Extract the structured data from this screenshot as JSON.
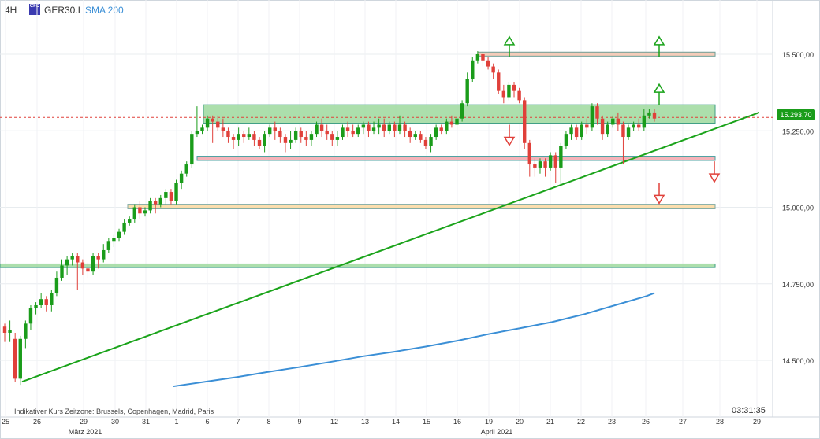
{
  "header": {
    "timeframe": "4H",
    "symbol": "GER30.I",
    "indicator": "SMA 200",
    "icon_label": "CFD"
  },
  "footer": {
    "note": "Indikativer Kurs    Zeitzone: Brussels, Copenhagen, Madrid, Paris",
    "clock": "03:31:35"
  },
  "current_price_label": "15.293,70",
  "colors": {
    "up": "#1a9c1a",
    "down": "#e0403a",
    "sma": "#3b8fd6",
    "trendline": "#1aa31a",
    "zone_green": "#9ed99e",
    "zone_red": "#f3a6ad",
    "zone_orange": "#fbd9a0",
    "zone_salmon": "#f4c4ae"
  },
  "chart_data": {
    "type": "candlestick",
    "y_tick_labels": [
      "15.500,00",
      "15.250,00",
      "15.000,00",
      "14.750,00",
      "14.500,00"
    ],
    "y_ticks": [
      15500,
      15250,
      15000,
      14750,
      14500
    ],
    "x_tick_labels": [
      "25",
      "26",
      "29",
      "30",
      "31",
      "1",
      "6",
      "7",
      "8",
      "9",
      "12",
      "13",
      "14",
      "15",
      "16",
      "19",
      "20",
      "21",
      "22",
      "23",
      "26",
      "27",
      "28",
      "29"
    ],
    "month_labels": [
      "März 2021",
      "April 2021"
    ],
    "current_price": 15293.7,
    "candles": [
      [
        14610,
        14590,
        14560,
        14620
      ],
      [
        14590,
        14600,
        14560,
        14630
      ],
      [
        14570,
        14440,
        14430,
        14590
      ],
      [
        14440,
        14570,
        14420,
        14580
      ],
      [
        14570,
        14620,
        14540,
        14630
      ],
      [
        14620,
        14670,
        14600,
        14680
      ],
      [
        14670,
        14680,
        14650,
        14690
      ],
      [
        14680,
        14700,
        14670,
        14720
      ],
      [
        14700,
        14680,
        14660,
        14710
      ],
      [
        14680,
        14720,
        14660,
        14730
      ],
      [
        14720,
        14770,
        14710,
        14790
      ],
      [
        14770,
        14810,
        14760,
        14830
      ],
      [
        14810,
        14830,
        14780,
        14840
      ],
      [
        14830,
        14840,
        14810,
        14850
      ],
      [
        14840,
        14820,
        14730,
        14850
      ],
      [
        14820,
        14800,
        14780,
        14830
      ],
      [
        14800,
        14790,
        14770,
        14820
      ],
      [
        14790,
        14840,
        14780,
        14850
      ],
      [
        14840,
        14830,
        14800,
        14850
      ],
      [
        14830,
        14860,
        14820,
        14880
      ],
      [
        14860,
        14890,
        14850,
        14900
      ],
      [
        14890,
        14900,
        14870,
        14910
      ],
      [
        14900,
        14920,
        14890,
        14930
      ],
      [
        14920,
        14950,
        14910,
        14960
      ],
      [
        14950,
        14960,
        14940,
        14970
      ],
      [
        14960,
        15000,
        14950,
        15010
      ],
      [
        15000,
        14980,
        14960,
        15020
      ],
      [
        14980,
        14990,
        14970,
        15000
      ],
      [
        14990,
        15020,
        14980,
        15030
      ],
      [
        15020,
        15010,
        14980,
        15030
      ],
      [
        15010,
        15030,
        15000,
        15040
      ],
      [
        15030,
        15050,
        15010,
        15060
      ],
      [
        15050,
        15020,
        15010,
        15060
      ],
      [
        15020,
        15080,
        15010,
        15090
      ],
      [
        15080,
        15110,
        15060,
        15120
      ],
      [
        15110,
        15140,
        15100,
        15150
      ],
      [
        15140,
        15240,
        15130,
        15250
      ],
      [
        15240,
        15250,
        15230,
        15330
      ],
      [
        15250,
        15260,
        15240,
        15270
      ],
      [
        15260,
        15290,
        15250,
        15300
      ],
      [
        15290,
        15280,
        15210,
        15300
      ],
      [
        15280,
        15260,
        15250,
        15300
      ],
      [
        15260,
        15250,
        15230,
        15290
      ],
      [
        15250,
        15230,
        15210,
        15260
      ],
      [
        15230,
        15220,
        15190,
        15240
      ],
      [
        15220,
        15240,
        15200,
        15260
      ],
      [
        15240,
        15230,
        15210,
        15250
      ],
      [
        15230,
        15240,
        15220,
        15260
      ],
      [
        15240,
        15220,
        15200,
        15250
      ],
      [
        15220,
        15200,
        15190,
        15230
      ],
      [
        15200,
        15240,
        15180,
        15250
      ],
      [
        15240,
        15260,
        15230,
        15270
      ],
      [
        15260,
        15250,
        15220,
        15280
      ],
      [
        15250,
        15230,
        15210,
        15260
      ],
      [
        15230,
        15210,
        15180,
        15240
      ],
      [
        15210,
        15220,
        15190,
        15250
      ],
      [
        15220,
        15250,
        15210,
        15260
      ],
      [
        15250,
        15230,
        15210,
        15260
      ],
      [
        15230,
        15220,
        15200,
        15250
      ],
      [
        15220,
        15240,
        15200,
        15250
      ],
      [
        15240,
        15270,
        15230,
        15280
      ],
      [
        15270,
        15250,
        15230,
        15290
      ],
      [
        15250,
        15240,
        15220,
        15270
      ],
      [
        15240,
        15220,
        15200,
        15250
      ],
      [
        15220,
        15230,
        15200,
        15250
      ],
      [
        15230,
        15260,
        15220,
        15270
      ],
      [
        15260,
        15250,
        15230,
        15280
      ],
      [
        15250,
        15240,
        15230,
        15270
      ],
      [
        15240,
        15260,
        15230,
        15270
      ],
      [
        15260,
        15270,
        15240,
        15280
      ],
      [
        15270,
        15250,
        15230,
        15280
      ],
      [
        15250,
        15260,
        15240,
        15280
      ],
      [
        15260,
        15270,
        15240,
        15290
      ],
      [
        15270,
        15250,
        15230,
        15290
      ],
      [
        15250,
        15270,
        15240,
        15280
      ],
      [
        15270,
        15250,
        15230,
        15280
      ],
      [
        15250,
        15270,
        15240,
        15300
      ],
      [
        15270,
        15250,
        15230,
        15280
      ],
      [
        15250,
        15230,
        15210,
        15260
      ],
      [
        15230,
        15240,
        15220,
        15250
      ],
      [
        15240,
        15220,
        15210,
        15250
      ],
      [
        15220,
        15200,
        15190,
        15230
      ],
      [
        15200,
        15230,
        15180,
        15240
      ],
      [
        15230,
        15260,
        15220,
        15270
      ],
      [
        15260,
        15250,
        15240,
        15270
      ],
      [
        15250,
        15280,
        15240,
        15290
      ],
      [
        15280,
        15270,
        15260,
        15300
      ],
      [
        15270,
        15290,
        15260,
        15300
      ],
      [
        15290,
        15340,
        15280,
        15350
      ],
      [
        15340,
        15420,
        15330,
        15440
      ],
      [
        15420,
        15480,
        15410,
        15490
      ],
      [
        15480,
        15500,
        15470,
        15510
      ],
      [
        15500,
        15480,
        15460,
        15510
      ],
      [
        15480,
        15460,
        15450,
        15490
      ],
      [
        15460,
        15440,
        15420,
        15470
      ],
      [
        15440,
        15380,
        15370,
        15450
      ],
      [
        15380,
        15360,
        15340,
        15400
      ],
      [
        15360,
        15400,
        15350,
        15410
      ],
      [
        15400,
        15380,
        15360,
        15410
      ],
      [
        15380,
        15350,
        15340,
        15390
      ],
      [
        15350,
        15210,
        15190,
        15360
      ],
      [
        15210,
        15140,
        15100,
        15220
      ],
      [
        15140,
        15130,
        15100,
        15160
      ],
      [
        15130,
        15150,
        15110,
        15160
      ],
      [
        15150,
        15130,
        15100,
        15160
      ],
      [
        15130,
        15170,
        15120,
        15180
      ],
      [
        15170,
        15130,
        15080,
        15180
      ],
      [
        15130,
        15200,
        15070,
        15210
      ],
      [
        15200,
        15240,
        15190,
        15250
      ],
      [
        15240,
        15260,
        15220,
        15270
      ],
      [
        15260,
        15230,
        15220,
        15270
      ],
      [
        15230,
        15270,
        15220,
        15280
      ],
      [
        15270,
        15260,
        15240,
        15290
      ],
      [
        15260,
        15330,
        15250,
        15340
      ],
      [
        15330,
        15290,
        15270,
        15340
      ],
      [
        15290,
        15240,
        15220,
        15300
      ],
      [
        15240,
        15270,
        15230,
        15280
      ],
      [
        15270,
        15290,
        15260,
        15300
      ],
      [
        15290,
        15270,
        15250,
        15310
      ],
      [
        15270,
        15230,
        15140,
        15280
      ],
      [
        15230,
        15260,
        15220,
        15270
      ],
      [
        15260,
        15270,
        15250,
        15280
      ],
      [
        15270,
        15260,
        15250,
        15290
      ],
      [
        15260,
        15300,
        15250,
        15320
      ],
      [
        15300,
        15310,
        15290,
        15320
      ],
      [
        15310,
        15290,
        15280,
        15320
      ]
    ],
    "sma_200": [
      [
        220,
        14415
      ],
      [
        260,
        14430
      ],
      [
        300,
        14445
      ],
      [
        340,
        14462
      ],
      [
        380,
        14478
      ],
      [
        420,
        14495
      ],
      [
        460,
        14513
      ],
      [
        500,
        14528
      ],
      [
        540,
        14545
      ],
      [
        580,
        14564
      ],
      [
        620,
        14586
      ],
      [
        660,
        14605
      ],
      [
        700,
        14625
      ],
      [
        740,
        14650
      ],
      [
        780,
        14680
      ],
      [
        820,
        14710
      ],
      [
        830,
        14720
      ]
    ],
    "zones": [
      {
        "x1": 258,
        "x2": 907,
        "y_top": 15335,
        "y_bottom": 15275,
        "color": "green"
      },
      {
        "x1": 606,
        "x2": 907,
        "y_top": 15507,
        "y_bottom": 15494,
        "color": "salmon"
      },
      {
        "x1": 250,
        "x2": 907,
        "y_top": 15167,
        "y_bottom": 15153,
        "color": "red"
      },
      {
        "x1": 162,
        "x2": 907,
        "y_top": 15010,
        "y_bottom": 14995,
        "color": "orange"
      },
      {
        "x1": 0,
        "x2": 907,
        "y_top": 14815,
        "y_bottom": 14803,
        "color": "green"
      }
    ],
    "trendline": {
      "p1": [
        28,
        14430
      ],
      "p2": [
        963,
        15310
      ]
    },
    "arrows": [
      {
        "x": 646,
        "y": 15490,
        "dir": "up",
        "color": "green"
      },
      {
        "x": 836,
        "y": 15490,
        "dir": "up",
        "color": "green"
      },
      {
        "x": 836,
        "y": 15335,
        "dir": "up",
        "color": "green"
      },
      {
        "x": 646,
        "y": 15270,
        "dir": "down",
        "color": "red"
      },
      {
        "x": 906,
        "y": 15150,
        "dir": "down",
        "color": "red"
      },
      {
        "x": 836,
        "y": 15080,
        "dir": "down",
        "color": "red"
      }
    ]
  }
}
